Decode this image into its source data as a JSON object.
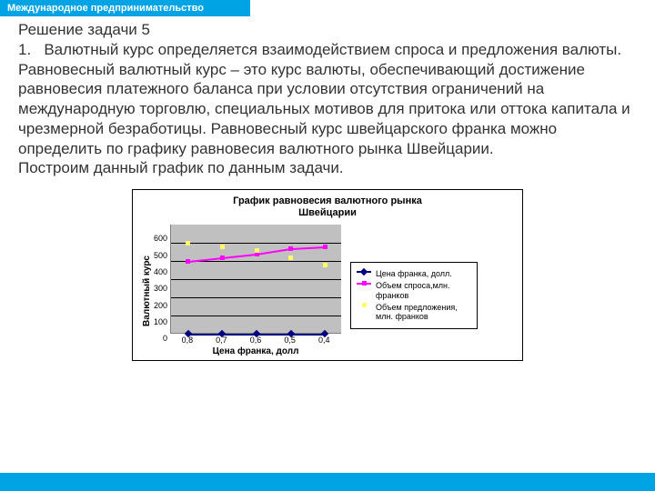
{
  "header": {
    "title": "Международное предпринимательство"
  },
  "text": {
    "heading": "Решение задачи 5",
    "p1": "1.   Валютный курс определяется взаимодействием спроса и предложения валюты. Равновесный валютный курс – это курс валюты, обеспечивающий достижение равновесия платежного баланса при условии отсутствия ограничений на международную торговлю, специальных мотивов для притока или оттока капитала и чрезмерной безработицы. Равновесный курс швейцарского франка можно определить по графику равновесия валютного рынка Швейцарии.",
    "p2": "Построим данный график по данным задачи."
  },
  "chart": {
    "type": "line",
    "title_l1": "График равновесия валютного рынка",
    "title_l2": "Швейцарии",
    "xlabel": "Цена франка, долл",
    "ylabel": "Валютный курс",
    "categories": [
      "0,8",
      "0,7",
      "0,6",
      "0,5",
      "0,4"
    ],
    "yticks": [
      "600",
      "500",
      "400",
      "300",
      "200",
      "100",
      "0"
    ],
    "ylim": [
      0,
      600
    ],
    "xtick_step": 1,
    "plot_bg": "#c0c0c0",
    "grid_color": "#000000",
    "series": [
      {
        "name": "Цена франка, долл.",
        "legend": "Цена франка, долл.",
        "color": "#000080",
        "marker": "diamond",
        "values": [
          0.8,
          0.7,
          0.6,
          0.5,
          0.4
        ],
        "y_raw_for_rendering": [
          0.8,
          0.7,
          0.6,
          0.5,
          0.4
        ]
      },
      {
        "name": "Объем спроса,млн. франков",
        "legend": "Объем спроса,млн. франков",
        "color": "#ff00ff",
        "marker": "square",
        "values": [
          400,
          420,
          440,
          470,
          480
        ]
      },
      {
        "name": "Объем предложения, млн. франков",
        "legend": "Объем предложения, млн. франков",
        "color": "#ffff66",
        "marker": "dot",
        "line": false,
        "values": [
          500,
          480,
          460,
          420,
          380
        ]
      }
    ],
    "title_fontsize": 11,
    "label_fontsize": 10,
    "tick_fontsize": 9
  }
}
